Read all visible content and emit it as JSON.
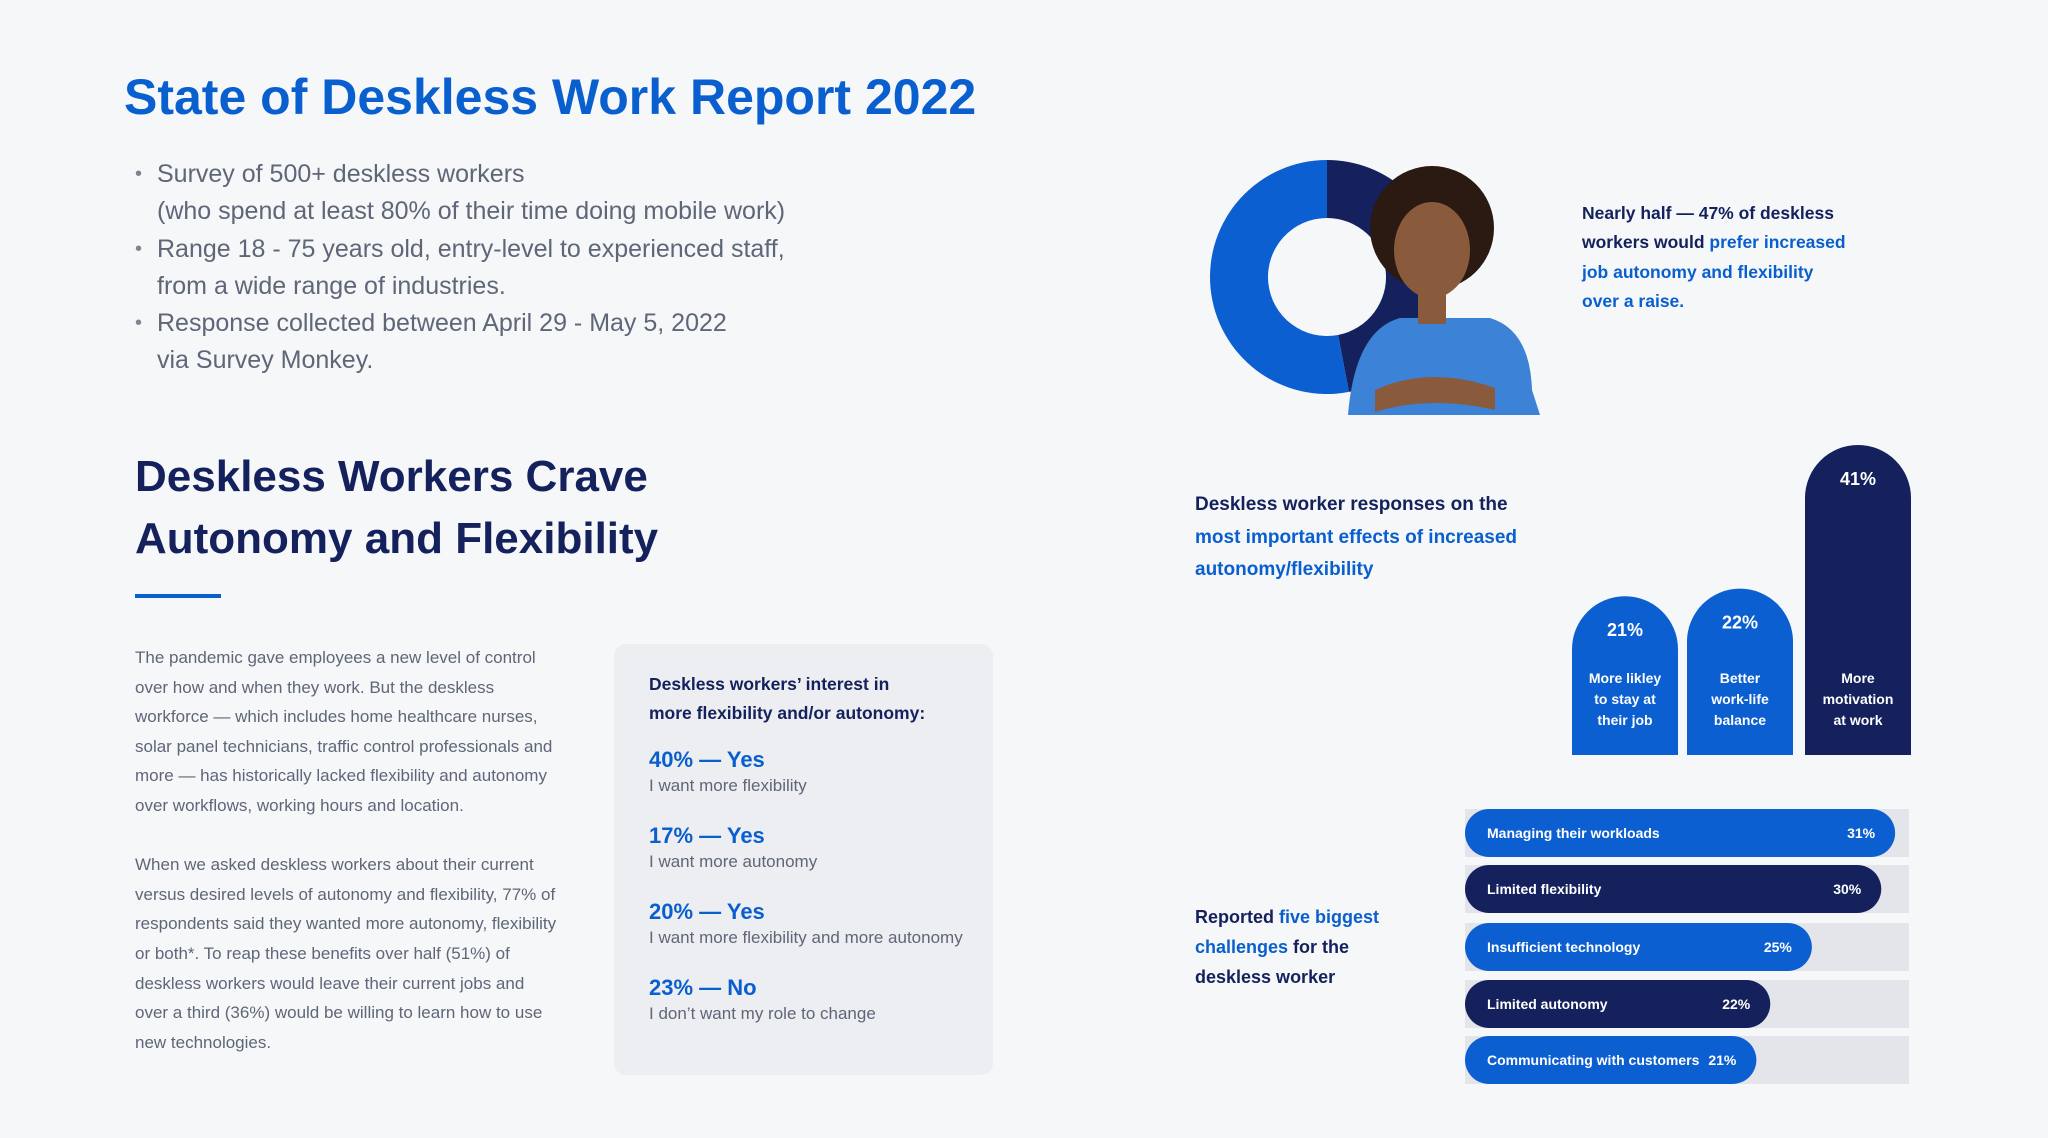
{
  "header": {
    "title": "State of Deskless Work Report 2022",
    "bullets": [
      [
        "Survey of 500+ deskless workers",
        "(who spend at least 80% of their time doing mobile work)"
      ],
      [
        "Range 18 - 75 years old, entry-level to experienced staff,",
        "from a wide range of industries."
      ],
      [
        "Response collected between April 29 - May 5, 2022",
        "via Survey Monkey."
      ]
    ]
  },
  "article": {
    "title": [
      "Deskless Workers Crave",
      "Autonomy and Flexibility"
    ],
    "paragraphs": [
      "The pandemic gave employees a new level of control over how and when they work. But the deskless workforce — which includes home healthcare nurses, solar panel technicians, traffic control professionals and more — has historically lacked flexibility and autonomy over workflows, working hours and location.",
      "When we asked deskless workers about their current versus desired levels of autonomy and flexibility, 77% of respondents said they wanted more autonomy, flexibility or both*. To reap these benefits over half (51%) of deskless workers would leave their current jobs and over a third (36%) would be willing to learn how to use new technologies."
    ]
  },
  "interest": {
    "title": [
      "Deskless workers’ interest in",
      "more flexibility and/or autonomy:"
    ],
    "items": [
      {
        "heading": "40% — Yes",
        "text": "I want more flexibility"
      },
      {
        "heading": "17% — Yes",
        "text": "I want more autonomy"
      },
      {
        "heading": "20% — Yes",
        "text": "I want more flexibility and more autonomy"
      },
      {
        "heading": "23% — No",
        "text": "I don’t want my role to change"
      }
    ]
  },
  "chart_data": [
    {
      "type": "pie",
      "donut": true,
      "values": [
        47,
        53
      ],
      "colors": [
        "#14215c",
        "#0b5fd1"
      ],
      "caption": [
        {
          "text": "Nearly half — 47% of deskless workers would ",
          "highlight": false
        },
        {
          "text": "prefer increased job autonomy and flexibility over a raise.",
          "highlight": true
        }
      ]
    },
    {
      "type": "bar",
      "title": [
        {
          "text": "Deskless worker responses on the ",
          "highlight": false
        },
        {
          "text": "most important effects of increased autonomy/flexibility",
          "highlight": true
        }
      ],
      "categories": [
        [
          "More likley",
          "to stay at",
          "their job"
        ],
        [
          "Better",
          "work-life",
          "balance"
        ],
        [
          "More",
          "motivation",
          "at work"
        ]
      ],
      "values": [
        21,
        22,
        41
      ],
      "value_labels": [
        "21%",
        "22%",
        "41%"
      ],
      "colors": [
        "#0b5fd1",
        "#0b5fd1",
        "#14215c"
      ],
      "ylim": [
        0,
        41
      ]
    },
    {
      "type": "hbar",
      "title": [
        {
          "text": "Reported ",
          "highlight": false
        },
        {
          "text": "five biggest challenges",
          "highlight": true
        },
        {
          "text": " for the deskless worker",
          "highlight": false
        }
      ],
      "categories": [
        "Managing their workloads",
        "Limited flexibility",
        "Insufficient technology",
        "Limited autonomy",
        "Communicating with customers"
      ],
      "values": [
        31,
        30,
        25,
        22,
        21
      ],
      "value_labels": [
        "31%",
        "30%",
        "25%",
        "22%",
        "21%"
      ],
      "colors": [
        "#0b5fd1",
        "#14215c",
        "#0b5fd1",
        "#14215c",
        "#0b5fd1"
      ],
      "xlim": [
        0,
        32
      ],
      "track_color": "#e3e5ea"
    }
  ]
}
